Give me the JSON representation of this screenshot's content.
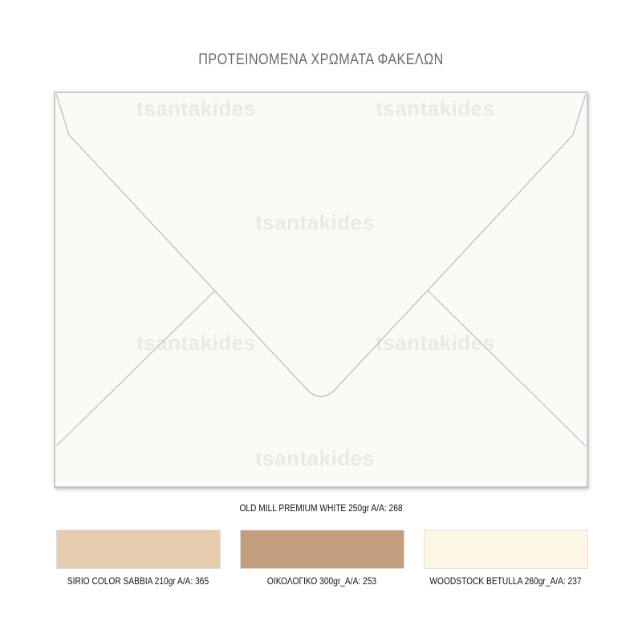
{
  "title": "ΠΡΟΤΕΙΝΟΜΕΝΑ ΧΡΩΜΑΤΑ ΦΑΚΕΛΩΝ",
  "watermark": "tsantakides",
  "main_envelope": {
    "label": "OLD MILL PREMIUM WHITE 250gr A/A: 268",
    "color": "#fcfaf6"
  },
  "swatches": [
    {
      "label": "SIRIO COLOR SABBIA 210gr A/A: 365",
      "color": "#e6ccaf"
    },
    {
      "label": "ΟΙΚΟΛΟΓΙΚΟ 300gr_A/A: 253",
      "color": "#c29e7c"
    },
    {
      "label": "WOODSTOCK BETULLA 260gr_A/A: 237",
      "color": "#fdf7e6"
    }
  ]
}
